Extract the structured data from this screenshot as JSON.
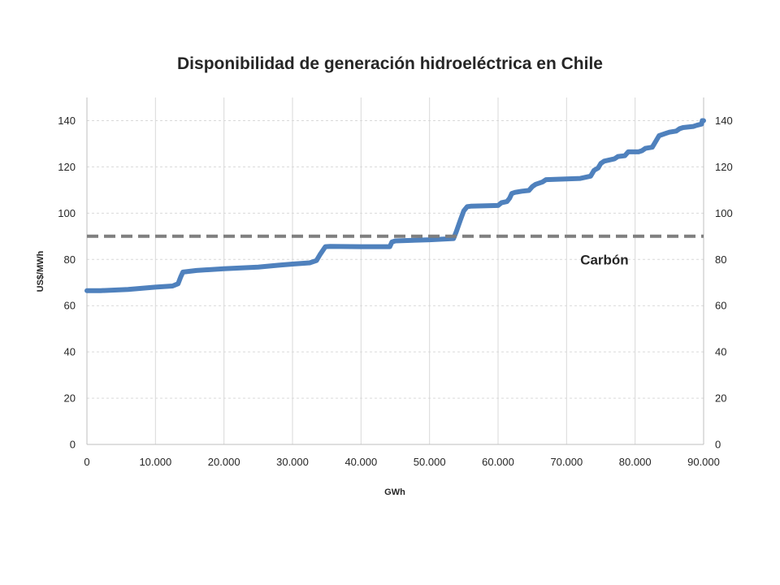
{
  "chart_data": {
    "type": "line",
    "title": "Disponibilidad de generación hidroeléctrica en Chile",
    "xlabel": "GWh",
    "ylabel": "US$/MWh",
    "xlim": [
      0,
      90000
    ],
    "ylim": [
      0,
      150
    ],
    "x_ticks": [
      0,
      10000,
      20000,
      30000,
      40000,
      50000,
      60000,
      70000,
      80000,
      90000
    ],
    "x_tick_labels": [
      "0",
      "10.000",
      "20.000",
      "30.000",
      "40.000",
      "50.000",
      "60.000",
      "70.000",
      "80.000",
      "90.000"
    ],
    "y_ticks": [
      0,
      20,
      40,
      60,
      80,
      100,
      120,
      140
    ],
    "y_tick_labels": [
      "0",
      "20",
      "40",
      "60",
      "80",
      "100",
      "120",
      "140"
    ],
    "secondary_y_ticks": [
      0,
      20,
      40,
      60,
      80,
      100,
      120,
      140
    ],
    "secondary_y_tick_labels": [
      "0",
      "20",
      "40",
      "60",
      "80",
      "100",
      "120",
      "140"
    ],
    "grid": true,
    "series": [
      {
        "style": "solid",
        "color": "#4f81bd",
        "x": [
          0,
          2000,
          6000,
          10000,
          12500,
          13300,
          13700,
          14000,
          16000,
          20000,
          25000,
          28000,
          30000,
          32500,
          33500,
          34000,
          34800,
          35500,
          40000,
          44200,
          44500,
          45000,
          50000,
          53500,
          53900,
          54500,
          55000,
          55500,
          56000,
          60000,
          60500,
          61300,
          61700,
          62000,
          62500,
          63500,
          64500,
          65000,
          65500,
          66500,
          67000,
          72000,
          73500,
          74000,
          74600,
          75000,
          75500,
          77000,
          77500,
          78500,
          79000,
          80500,
          81000,
          81500,
          82500,
          83000,
          83500,
          84500,
          85000,
          86000,
          86500,
          87000,
          88500,
          89000,
          89700,
          89800,
          90000
        ],
        "y": [
          66.5,
          66.5,
          67,
          68,
          68.5,
          69.5,
          72.5,
          74.5,
          75.2,
          76,
          76.7,
          77.5,
          78,
          78.5,
          79.5,
          82,
          85.5,
          85.6,
          85.5,
          85.5,
          87.5,
          88,
          88.5,
          89,
          92,
          97,
          101,
          102.8,
          103,
          103.3,
          104.5,
          105,
          106.5,
          108.5,
          109,
          109.5,
          109.8,
          111.5,
          112.5,
          113.5,
          114.5,
          115,
          116,
          118.5,
          119.5,
          121.5,
          122.5,
          123.5,
          124.5,
          124.8,
          126.5,
          126.5,
          127,
          128,
          128.5,
          131,
          133.5,
          134.5,
          135,
          135.5,
          136.5,
          137,
          137.5,
          138,
          138.5,
          140,
          140
        ]
      },
      {
        "style": "dashed",
        "color": "#7f7f7f",
        "x": [
          0,
          90000
        ],
        "y": [
          90,
          90
        ]
      }
    ],
    "annotations": [
      {
        "text": "Carbón",
        "x": 72000,
        "y": 80
      }
    ]
  }
}
